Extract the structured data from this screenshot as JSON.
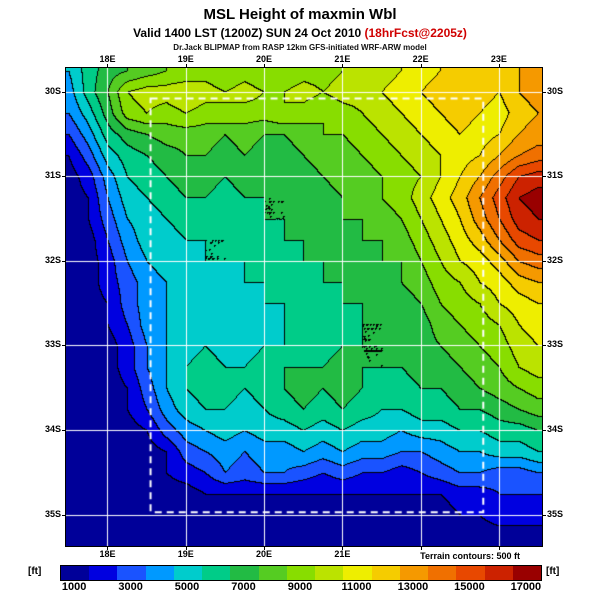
{
  "header": {
    "title": "MSL Height of maxmin Wbl",
    "valid_main": "Valid 1400 LST (1200Z) SUN 24 Oct 2010 ",
    "valid_fcst": "(18hrFcst@2205z)",
    "model_line": "Dr.Jack BLIPMAP from RASP 12km GFS-initiated WRF-ARW model"
  },
  "map": {
    "note": "Terrain contours: 500 ft",
    "grid_color": "#ffffff",
    "contour_color": "#000000",
    "nested_domain": {
      "lon_min": 18.55,
      "lon_max": 22.8,
      "lat_min": 30.08,
      "lat_max": 34.97
    }
  },
  "axes": {
    "top": [
      {
        "label": "18E",
        "lon": 18
      },
      {
        "label": "19E",
        "lon": 19
      },
      {
        "label": "20E",
        "lon": 20
      },
      {
        "label": "21E",
        "lon": 21
      },
      {
        "label": "22E",
        "lon": 22
      },
      {
        "label": "23E",
        "lon": 23
      }
    ],
    "bottom": [
      {
        "label": "18E",
        "lon": 18
      },
      {
        "label": "19E",
        "lon": 19
      },
      {
        "label": "20E",
        "lon": 20
      },
      {
        "label": "21E",
        "lon": 21
      }
    ],
    "left": [
      {
        "label": "30S",
        "lat": 30
      },
      {
        "label": "31S",
        "lat": 31
      },
      {
        "label": "32S",
        "lat": 32
      },
      {
        "label": "33S",
        "lat": 33
      },
      {
        "label": "34S",
        "lat": 34
      },
      {
        "label": "35S",
        "lat": 35
      }
    ],
    "right": [
      {
        "label": "30S",
        "lat": 30
      },
      {
        "label": "31S",
        "lat": 31
      },
      {
        "label": "32S",
        "lat": 32
      },
      {
        "label": "33S",
        "lat": 33
      },
      {
        "label": "34S",
        "lat": 34
      },
      {
        "label": "35S",
        "lat": 35
      }
    ]
  },
  "colorbar": {
    "unit_left": "[ft]",
    "unit_right": "[ft]",
    "ticks": [
      "1000",
      "3000",
      "5000",
      "7000",
      "9000",
      "11000",
      "13000",
      "15000",
      "17000"
    ],
    "tick_values": [
      1000,
      3000,
      5000,
      7000,
      9000,
      11000,
      13000,
      15000,
      17000
    ],
    "stops": [
      {
        "value": 1000,
        "color": "#000099"
      },
      {
        "value": 2000,
        "color": "#0000e0"
      },
      {
        "value": 3000,
        "color": "#1a53ff"
      },
      {
        "value": 4000,
        "color": "#0099ff"
      },
      {
        "value": 5000,
        "color": "#00cccc"
      },
      {
        "value": 6000,
        "color": "#00cc88"
      },
      {
        "value": 7000,
        "color": "#22bb44"
      },
      {
        "value": 8000,
        "color": "#55cc22"
      },
      {
        "value": 9000,
        "color": "#88dd00"
      },
      {
        "value": 10000,
        "color": "#bbe300"
      },
      {
        "value": 11000,
        "color": "#eeee00"
      },
      {
        "value": 12000,
        "color": "#f5cc00"
      },
      {
        "value": 13000,
        "color": "#f59900"
      },
      {
        "value": 14000,
        "color": "#f07000"
      },
      {
        "value": 15000,
        "color": "#e84800"
      },
      {
        "value": 16000,
        "color": "#cc2200"
      },
      {
        "value": 17000,
        "color": "#990000"
      }
    ]
  },
  "chart_data": {
    "type": "heatmap",
    "title": "MSL Height of maxmin Wbl",
    "units": "ft",
    "x_ticks": [
      "18E",
      "19E",
      "20E",
      "21E",
      "22E",
      "23E"
    ],
    "y_ticks": [
      "30S",
      "31S",
      "32S",
      "33S",
      "34S",
      "35S"
    ],
    "value_range": [
      1000,
      17000
    ],
    "lon_range": [
      17.5,
      23.5
    ],
    "lat_range": [
      29.75,
      35.25
    ],
    "lon_step": 0.25,
    "lat_step": 0.25,
    "plot_lon_range": [
      17.47,
      23.55
    ],
    "plot_lat_range": [
      29.72,
      35.37
    ],
    "values": [
      [
        4500,
        6000,
        7000,
        7500,
        8000,
        8500,
        8500,
        9000,
        8500,
        9000,
        8500,
        8500,
        9000,
        9000,
        9500,
        9500,
        10000,
        10500,
        11000,
        11500,
        12000,
        12500,
        12000,
        12500,
        13000
      ],
      [
        4000,
        6000,
        7500,
        9500,
        10000,
        10000,
        10500,
        10000,
        9500,
        10000,
        9500,
        9500,
        10000,
        9500,
        10000,
        10000,
        10500,
        11000,
        11500,
        12000,
        12500,
        12000,
        11500,
        12500,
        13000
      ],
      [
        3500,
        5000,
        7000,
        9000,
        9500,
        9000,
        9500,
        9000,
        9500,
        9000,
        9000,
        9500,
        9000,
        8500,
        9000,
        9500,
        10000,
        10500,
        11000,
        11500,
        12000,
        11500,
        11000,
        12000,
        12500
      ],
      [
        2500,
        4000,
        6000,
        7000,
        7500,
        8000,
        8000,
        8000,
        7500,
        8000,
        7500,
        7500,
        8000,
        8500,
        8500,
        9000,
        9500,
        10000,
        10500,
        11000,
        11500,
        11000,
        11500,
        12500,
        13000
      ],
      [
        1500,
        3000,
        5000,
        6000,
        6500,
        7000,
        7500,
        7500,
        7000,
        7500,
        7000,
        7000,
        7500,
        8000,
        8000,
        8500,
        9000,
        9500,
        10000,
        10500,
        11000,
        11500,
        12500,
        13500,
        14000
      ],
      [
        1000,
        2000,
        4000,
        5500,
        6000,
        6500,
        7000,
        7000,
        6500,
        7000,
        6500,
        7000,
        7000,
        7500,
        8000,
        8000,
        8500,
        9000,
        9500,
        10500,
        11500,
        12500,
        14000,
        15500,
        16000
      ],
      [
        1000,
        1500,
        3500,
        5000,
        5500,
        6000,
        6500,
        6500,
        6000,
        6500,
        6500,
        6500,
        7000,
        7000,
        7500,
        8000,
        8500,
        9000,
        10000,
        11000,
        12000,
        13500,
        15000,
        16500,
        17000
      ],
      [
        1000,
        1500,
        3000,
        4500,
        5000,
        5500,
        6000,
        6000,
        6000,
        6000,
        6500,
        6500,
        7000,
        7000,
        7500,
        7500,
        8000,
        8500,
        9500,
        10500,
        11500,
        13000,
        14500,
        16000,
        16500
      ],
      [
        1000,
        1000,
        2500,
        4000,
        5000,
        5000,
        5500,
        5500,
        5500,
        6000,
        6000,
        6500,
        6500,
        7000,
        7000,
        7500,
        7500,
        8000,
        9000,
        10000,
        11000,
        12000,
        13500,
        15000,
        15500
      ],
      [
        1000,
        1000,
        2000,
        3500,
        4500,
        5000,
        5000,
        5500,
        5500,
        5500,
        6000,
        6000,
        6500,
        6500,
        7000,
        7000,
        7500,
        7500,
        8500,
        9500,
        10500,
        11000,
        12000,
        13500,
        14000
      ],
      [
        1000,
        1000,
        2000,
        3000,
        4000,
        4500,
        5000,
        5000,
        5000,
        5500,
        5500,
        6000,
        6000,
        6500,
        6500,
        7000,
        7000,
        7500,
        8000,
        9000,
        9500,
        10500,
        11000,
        12000,
        12500
      ],
      [
        1000,
        1000,
        1500,
        3000,
        4000,
        4500,
        4500,
        5000,
        5000,
        5000,
        5500,
        5500,
        6000,
        6000,
        6500,
        6500,
        7000,
        7000,
        7500,
        8500,
        9000,
        9500,
        10500,
        11000,
        11500
      ],
      [
        1000,
        1000,
        1500,
        2500,
        4000,
        4500,
        5000,
        5000,
        4500,
        5000,
        5000,
        5500,
        5500,
        6000,
        6000,
        6500,
        6500,
        7000,
        7000,
        8000,
        8500,
        9000,
        9500,
        10500,
        11000
      ],
      [
        1000,
        1000,
        1000,
        2000,
        3500,
        4500,
        5000,
        5500,
        5000,
        5000,
        5500,
        5500,
        6000,
        6000,
        6500,
        6500,
        6500,
        7000,
        7000,
        7500,
        8000,
        8500,
        9000,
        10000,
        10500
      ],
      [
        1000,
        1000,
        1000,
        2000,
        3500,
        4500,
        5500,
        6000,
        5500,
        5500,
        6000,
        6500,
        6500,
        6500,
        7000,
        6500,
        6500,
        6500,
        7000,
        7000,
        7500,
        8000,
        8500,
        9500,
        10000
      ],
      [
        1000,
        1000,
        1000,
        1500,
        3000,
        4500,
        5500,
        6000,
        6000,
        5500,
        6000,
        6500,
        7000,
        6500,
        7000,
        6500,
        6000,
        6000,
        6500,
        6500,
        7000,
        7500,
        8000,
        8500,
        9000
      ],
      [
        1000,
        1000,
        1000,
        1500,
        2500,
        4000,
        5000,
        5500,
        5500,
        5000,
        5500,
        6000,
        6500,
        6000,
        6500,
        6000,
        5500,
        5500,
        6000,
        6000,
        6500,
        6500,
        7000,
        7500,
        8000
      ],
      [
        1000,
        1000,
        1000,
        1000,
        1500,
        3000,
        4000,
        4500,
        5000,
        4500,
        5000,
        5000,
        5500,
        5000,
        5500,
        5000,
        5000,
        4500,
        5000,
        5000,
        5500,
        5500,
        6000,
        6000,
        6500
      ],
      [
        1000,
        1000,
        1000,
        1000,
        1000,
        1500,
        3000,
        3500,
        4000,
        3500,
        4000,
        4000,
        4500,
        4000,
        4500,
        4000,
        4000,
        3500,
        3500,
        4000,
        4500,
        4500,
        5000,
        5000,
        5500
      ],
      [
        1000,
        1000,
        1000,
        1000,
        1000,
        1500,
        2000,
        2500,
        3500,
        3000,
        3500,
        3500,
        3000,
        2500,
        3000,
        2500,
        2500,
        2000,
        2500,
        3000,
        3500,
        3500,
        3000,
        3000,
        3500
      ],
      [
        1000,
        1000,
        1000,
        1000,
        1000,
        1000,
        1000,
        1500,
        1500,
        1500,
        1500,
        1500,
        1500,
        1500,
        1500,
        1500,
        1500,
        1500,
        1500,
        1500,
        2000,
        2000,
        2500,
        2500,
        2500
      ],
      [
        1000,
        1000,
        1000,
        1000,
        1000,
        1000,
        1000,
        1000,
        1000,
        1000,
        1000,
        1000,
        1000,
        1000,
        1000,
        1000,
        1000,
        1000,
        1000,
        1000,
        1500,
        1500,
        2000,
        2000,
        2000
      ],
      [
        1000,
        1000,
        1000,
        1000,
        1000,
        1000,
        1000,
        1000,
        1000,
        1000,
        1000,
        1000,
        1000,
        1000,
        1000,
        1000,
        1000,
        1000,
        1000,
        1000,
        1000,
        1000,
        1000,
        1000,
        1000
      ]
    ]
  }
}
